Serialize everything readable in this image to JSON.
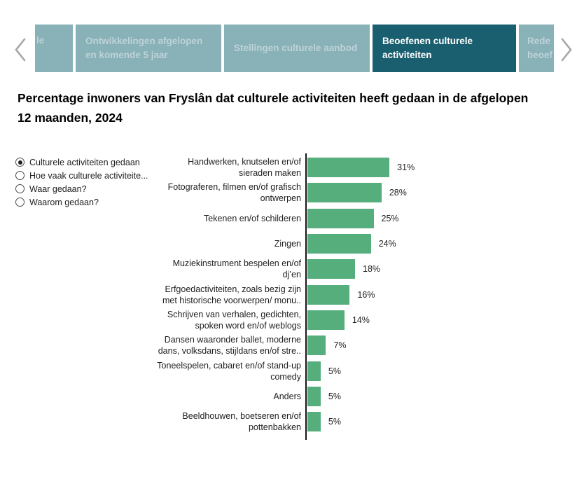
{
  "colors": {
    "tab_active_bg": "#1a5f6f",
    "tab_inactive_bg": "#88b1b8",
    "tab_active_text": "#ffffff",
    "tab_inactive_text": "#bdd3d7",
    "bar_color": "#55ae7c",
    "axis_color": "#151515",
    "chevron_color": "#a6a6a6"
  },
  "tabbar": {
    "scroll_left_icon": "chevron-left",
    "scroll_right_icon": "chevron-right",
    "tabs": [
      {
        "label_lines": [
          "le"
        ],
        "active": false,
        "partial": "left"
      },
      {
        "label_lines": [
          "Ontwikkelingen afgelopen",
          "en komende 5 jaar"
        ],
        "active": false,
        "partial": null
      },
      {
        "label_lines": [
          "Stellingen culturele aanbod"
        ],
        "active": false,
        "partial": null
      },
      {
        "label_lines": [
          "Beoefenen culturele",
          "activiteiten"
        ],
        "active": true,
        "partial": null
      },
      {
        "label_lines": [
          "Rede",
          "beoef"
        ],
        "active": false,
        "partial": "right"
      }
    ]
  },
  "title": {
    "full": "Percentage inwoners van Fryslân dat culturele activiteiten heeft gedaan in de afgelopen 12 maanden, 2024",
    "lines": [
      "Percentage inwoners van Fryslân dat culturele activiteiten heeft gedaan in de afgelopen",
      "12 maanden, 2024"
    ]
  },
  "filters": {
    "selected_index": 0,
    "options": [
      {
        "label": "Culturele activiteiten gedaan",
        "selected": true
      },
      {
        "label": "Hoe vaak culturele activiteite...",
        "selected": false
      },
      {
        "label": "Waar gedaan?",
        "selected": false
      },
      {
        "label": "Waarom gedaan?",
        "selected": false
      }
    ]
  },
  "chart_data": {
    "type": "bar",
    "orientation": "horizontal",
    "title": "Percentage inwoners van Fryslân dat culturele activiteiten heeft gedaan in de afgelopen 12 maanden, 2024",
    "unit": "%",
    "grid": false,
    "legend": null,
    "bar_color": "#55ae7c",
    "categories": [
      "Handwerken, knutselen en/of sieraden maken",
      "Fotograferen, filmen en/of grafisch ontwerpen",
      "Tekenen en/of schilderen",
      "Zingen",
      "Muziekinstrument bespelen en/of dj’en",
      "Erfgoedactiviteiten, zoals bezig zijn met historische voorwerpen/ monu..",
      "Schrijven van verhalen, gedichten, spoken word en/of weblogs",
      "Dansen waaronder ballet, moderne dans, volksdans, stijldans en/of stre..",
      "Toneelspelen, cabaret en/of stand-up comedy",
      "Anders",
      "Beeldhouwen, boetseren en/of pottenbakken"
    ],
    "category_display_lines": [
      [
        "Handwerken, knutselen en/of",
        "sieraden maken"
      ],
      [
        "Fotograferen, filmen en/of grafisch",
        "ontwerpen"
      ],
      [
        "Tekenen en/of schilderen"
      ],
      [
        "Zingen"
      ],
      [
        "Muziekinstrument bespelen en/of",
        "dj’en"
      ],
      [
        "Erfgoedactiviteiten, zoals bezig zijn",
        "met historische voorwerpen/ monu.."
      ],
      [
        "Schrijven van verhalen, gedichten,",
        "spoken word en/of weblogs"
      ],
      [
        "Dansen waaronder ballet, moderne",
        "dans, volksdans, stijldans en/of stre.."
      ],
      [
        "Toneelspelen, cabaret en/of stand-up",
        "comedy"
      ],
      [
        "Anders"
      ],
      [
        "Beeldhouwen, boetseren en/of",
        "pottenbakken"
      ]
    ],
    "values": [
      31,
      28,
      25,
      24,
      18,
      16,
      14,
      7,
      5,
      5,
      5
    ],
    "value_labels": [
      "31%",
      "28%",
      "25%",
      "24%",
      "18%",
      "16%",
      "14%",
      "7%",
      "5%",
      "5%",
      "5%"
    ]
  }
}
